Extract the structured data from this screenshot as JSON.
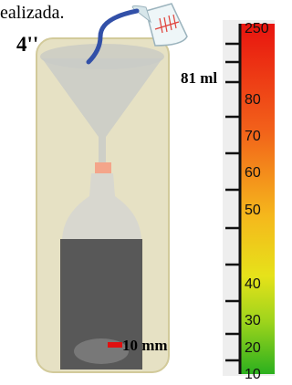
{
  "caption": "ealizada.",
  "gauge_diameter": "4''",
  "poured_volume": "81 ml",
  "water_level": "10 mm",
  "scale": {
    "labels": [
      "250",
      "80",
      "70",
      "60",
      "50",
      "40",
      "30",
      "20",
      "10"
    ]
  }
}
